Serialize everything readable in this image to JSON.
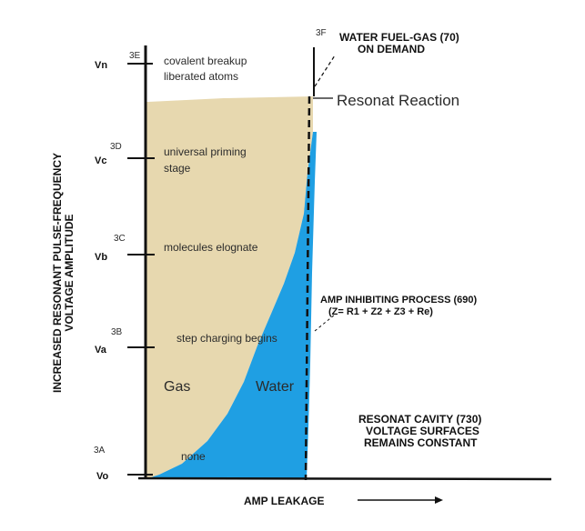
{
  "levels": [
    {
      "code": "3E",
      "label": "Vn",
      "annotation": [
        "covalent breakup",
        "liberated atoms"
      ]
    },
    {
      "code": "3D",
      "label": "Vc",
      "annotation": [
        "universal priming",
        "stage"
      ]
    },
    {
      "code": "3C",
      "label": "Vb",
      "annotation": [
        "molecules elognate"
      ]
    },
    {
      "code": "3B",
      "label": "Va",
      "annotation": [
        "step charging begins"
      ]
    },
    {
      "code": "3A",
      "label": "Vo",
      "annotation": [
        "none"
      ]
    }
  ],
  "y_axis_label": [
    "INCREASED RESONANT PULSE-FREQUENCY",
    "VOLTAGE AMPLITUDE"
  ],
  "x_axis_label": "AMP LEAKAGE",
  "right_wall": {
    "code": "3F",
    "top_note": [
      "WATER FUEL-GAS (70)",
      "ON DEMAND"
    ],
    "reaction": "Resonat Reaction",
    "inhibiting": [
      "AMP INHIBITING PROCESS (690)",
      "(Z= R1 + Z2 + Z3 + Re)"
    ]
  },
  "cavity_note": [
    "RESONAT CAVITY (730)",
    "VOLTAGE SURFACES",
    "REMAINS CONSTANT"
  ],
  "regions": {
    "gas": "Gas",
    "water": "Water"
  },
  "colors": {
    "gas": "#e7d8af",
    "water": "#1f9fe3",
    "ink": "#111111"
  }
}
